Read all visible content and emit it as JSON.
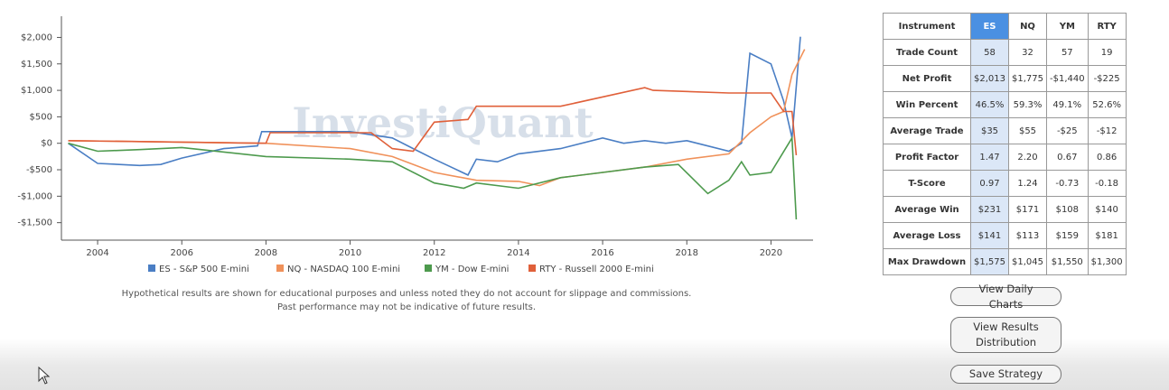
{
  "chart_data": {
    "type": "line",
    "watermark": "InvestiQuant",
    "xlim": [
      2003.14,
      2021.0
    ],
    "xticks": [
      2004,
      2006,
      2008,
      2010,
      2012,
      2014,
      2016,
      2018,
      2020
    ],
    "ylim": [
      -1830,
      2400
    ],
    "yticks": [
      {
        "value": -1500,
        "label": "-$1,500"
      },
      {
        "value": -1000,
        "label": "-$1,000"
      },
      {
        "value": -500,
        "label": "-$500"
      },
      {
        "value": 0,
        "label": "$0"
      },
      {
        "value": 500,
        "label": "$500"
      },
      {
        "value": 1000,
        "label": "$1,000"
      },
      {
        "value": 1500,
        "label": "$1,500"
      },
      {
        "value": 2000,
        "label": "$2,000"
      }
    ],
    "legend": "bottom",
    "series": [
      {
        "name": "ES - S&P 500 E-mini",
        "color": "#4a7ec4",
        "x": [
          2003.3,
          2004,
          2005,
          2005.5,
          2006,
          2007,
          2007.8,
          2007.9,
          2010,
          2011,
          2011.5,
          2012,
          2012.8,
          2013,
          2013.5,
          2014,
          2015,
          2016,
          2016.5,
          2017,
          2017.5,
          2018,
          2019,
          2019.3,
          2019.5,
          2020,
          2020.3,
          2020.5,
          2020.7
        ],
        "values": [
          0,
          -380,
          -420,
          -400,
          -280,
          -100,
          -50,
          220,
          220,
          100,
          -100,
          -300,
          -600,
          -300,
          -350,
          -200,
          -100,
          100,
          0,
          50,
          0,
          50,
          -150,
          0,
          1700,
          1500,
          800,
          100,
          2013
        ]
      },
      {
        "name": "NQ - NASDAQ 100 E-mini",
        "color": "#f0915a",
        "x": [
          2003.3,
          2008,
          2010,
          2011,
          2012,
          2013,
          2014,
          2014.5,
          2015,
          2016,
          2017,
          2018,
          2019,
          2019.5,
          2020,
          2020.3,
          2020.5,
          2020.8
        ],
        "values": [
          50,
          0,
          -100,
          -250,
          -550,
          -700,
          -720,
          -800,
          -650,
          -550,
          -450,
          -300,
          -200,
          200,
          500,
          600,
          1300,
          1775
        ]
      },
      {
        "name": "YM - Dow E-mini",
        "color": "#4d9a4d",
        "x": [
          2003.3,
          2004,
          2005,
          2006,
          2008,
          2010,
          2011,
          2012,
          2012.7,
          2013,
          2014,
          2015,
          2016,
          2017,
          2017.8,
          2018.5,
          2019,
          2019.3,
          2019.5,
          2020,
          2020.5,
          2020.6
        ],
        "values": [
          0,
          -150,
          -120,
          -80,
          -250,
          -300,
          -350,
          -750,
          -850,
          -750,
          -850,
          -650,
          -550,
          -450,
          -400,
          -950,
          -700,
          -350,
          -600,
          -550,
          100,
          -1440
        ]
      },
      {
        "name": "RTY - Russell 2000 E-mini",
        "color": "#e0603a",
        "x": [
          2003.3,
          2008,
          2008.1,
          2010.5,
          2011,
          2011.5,
          2012,
          2012.8,
          2013,
          2015,
          2017,
          2017.2,
          2019,
          2020,
          2020.3,
          2020.5,
          2020.6
        ],
        "values": [
          50,
          0,
          200,
          200,
          -100,
          -150,
          400,
          450,
          700,
          700,
          1050,
          1000,
          950,
          950,
          600,
          600,
          -225
        ]
      }
    ]
  },
  "disclaimer": [
    "Hypothetical results are shown for educational purposes and unless noted they do not account for slippage and commissions.",
    "Past performance may not be indicative of future results."
  ],
  "table": {
    "header": [
      "Instrument",
      "ES",
      "NQ",
      "YM",
      "RTY"
    ],
    "rows": [
      [
        "Trade Count",
        "58",
        "32",
        "57",
        "19"
      ],
      [
        "Net Profit",
        "$2,013",
        "$1,775",
        "-$1,440",
        "-$225"
      ],
      [
        "Win Percent",
        "46.5%",
        "59.3%",
        "49.1%",
        "52.6%"
      ],
      [
        "Average Trade",
        "$35",
        "$55",
        "-$25",
        "-$12"
      ],
      [
        "Profit Factor",
        "1.47",
        "2.20",
        "0.67",
        "0.86"
      ],
      [
        "T-Score",
        "0.97",
        "1.24",
        "-0.73",
        "-0.18"
      ],
      [
        "Average Win",
        "$231",
        "$171",
        "$108",
        "$140"
      ],
      [
        "Average Loss",
        "$141",
        "$113",
        "$159",
        "$181"
      ],
      [
        "Max Drawdown",
        "$1,575",
        "$1,045",
        "$1,550",
        "$1,300"
      ]
    ]
  },
  "buttons": [
    "View Daily Charts",
    "View Results Distribution",
    "Save Strategy"
  ]
}
